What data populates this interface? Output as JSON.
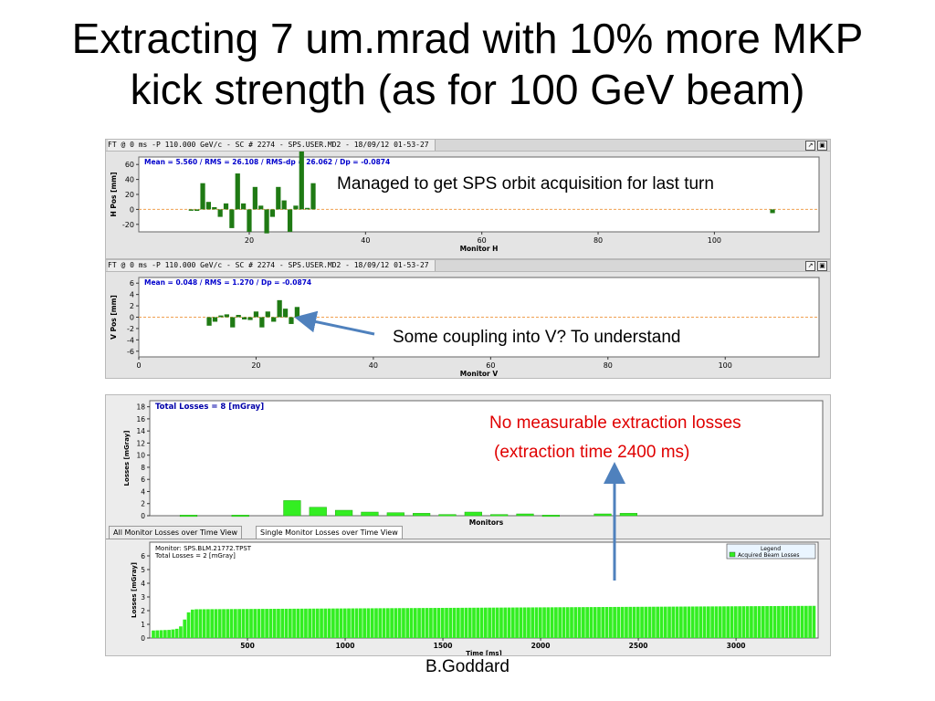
{
  "slide": {
    "title_line1": "Extracting 7 um.mrad with 10% more MKP",
    "title_line2": "kick strength (as for 100 GeV beam)",
    "author": "B.Goddard"
  },
  "annotations": {
    "orbit_note": "Managed to get SPS orbit acquisition for last turn",
    "coupling_note": "Some coupling into V? To understand",
    "losses_note_line1": "No measurable extraction losses",
    "losses_note_line2": "(extraction time 2400 ms)"
  },
  "colors": {
    "bar_dark_green": "#1f7a14",
    "bar_light_green": "#33ee22",
    "reference_line": "#f0a050",
    "arrow_blue": "#4f81bd",
    "loss_text_red": "#e00000",
    "stats_blue": "#0000cc"
  },
  "icons": [
    "maximize-icon",
    "restore-icon"
  ],
  "panels": {
    "h_orbit": {
      "header": "FT @ 0 ms -P  110.000 GeV/c - SC # 2274  - SPS.USER.MD2 - 18/09/12 01-53-27",
      "stats": "Mean =   5.560 / RMS =  26.108 / RMS-dp =  26.062 / Dp = -0.0874"
    },
    "v_orbit": {
      "header": "FT @ 0 ms -P  110.000 GeV/c - SC # 2274  - SPS.USER.MD2 - 18/09/12 01-53-27",
      "stats": "Mean =   0.048 / RMS =   1.270 / Dp = -0.0874"
    },
    "blm": {
      "title": "Total Losses = 8 [mGray]",
      "tabs": [
        "All Monitor Losses over Time View",
        "Single Monitor Losses over Time View"
      ],
      "active_tab": 1,
      "info_line1": "Monitor: SPS.BLM.21772.TPST",
      "info_line2": "Total Losses = 2 [mGray]",
      "legend_title": "Legend",
      "legend_item": "Acquired Beam Losses"
    }
  },
  "chart_data": [
    {
      "type": "bar",
      "xlabel": "Monitor H",
      "ylabel": "H Pos [mm]",
      "xlim": [
        1,
        118
      ],
      "ylim": [
        -30,
        70
      ],
      "xticks": [
        20,
        40,
        60,
        80,
        100
      ],
      "yticks": [
        -20,
        0,
        20,
        40,
        60
      ],
      "reference_line_y": 0,
      "x": [
        10,
        11,
        12,
        13,
        14,
        15,
        16,
        17,
        18,
        19,
        20,
        21,
        22,
        23,
        24,
        25,
        26,
        27,
        28,
        29,
        30,
        31,
        110
      ],
      "values": [
        0,
        -2,
        35,
        10,
        3,
        -10,
        8,
        -25,
        48,
        8,
        -30,
        30,
        5,
        -32,
        -10,
        30,
        12,
        -30,
        5,
        80,
        2,
        35,
        -5
      ]
    },
    {
      "type": "bar",
      "xlabel": "Monitor V",
      "ylabel": "V Pos [mm]",
      "xlim": [
        0,
        116
      ],
      "ylim": [
        -7,
        7
      ],
      "xticks": [
        0,
        20,
        40,
        60,
        80,
        100
      ],
      "yticks": [
        -6,
        -4,
        -2,
        0,
        2,
        4,
        6
      ],
      "reference_line_y": 0,
      "x": [
        12,
        13,
        14,
        15,
        16,
        17,
        18,
        19,
        20,
        21,
        22,
        23,
        24,
        25,
        26,
        27
      ],
      "values": [
        -1.5,
        -0.8,
        0.3,
        0.5,
        -1.8,
        0.4,
        -0.4,
        -0.5,
        1.0,
        -1.8,
        1.0,
        -0.8,
        3.0,
        1.5,
        -1.2,
        1.8
      ]
    },
    {
      "type": "bar",
      "title": "Total Losses = 8 [mGray]",
      "xlabel": "Monitors",
      "ylabel": "Losses [mGray]",
      "ylim": [
        0,
        19
      ],
      "yticks": [
        0,
        2,
        4,
        6,
        8,
        10,
        12,
        14,
        16,
        18
      ],
      "slots": 26,
      "x": [
        1,
        3,
        5,
        6,
        7,
        8,
        9,
        10,
        11,
        12,
        13,
        14,
        15,
        17,
        18
      ],
      "values": [
        0.1,
        0.1,
        2.5,
        1.4,
        0.9,
        0.6,
        0.5,
        0.4,
        0.2,
        0.6,
        0.2,
        0.3,
        0.1,
        0.3,
        0.4
      ]
    },
    {
      "type": "bar",
      "xlabel": "Time [ms]",
      "ylabel": "Losses [mGray]",
      "xlim": [
        0,
        3420
      ],
      "ylim": [
        0,
        7
      ],
      "xticks": [
        500,
        1000,
        1500,
        2000,
        2500,
        3000
      ],
      "yticks": [
        0,
        1,
        2,
        3,
        4,
        5,
        6
      ],
      "bar_width_ms": 20,
      "profile": [
        {
          "t": 20,
          "v": 0.55
        },
        {
          "t": 110,
          "v": 0.6
        },
        {
          "t": 150,
          "v": 0.7
        },
        {
          "t": 170,
          "v": 1.0
        },
        {
          "t": 190,
          "v": 1.7
        },
        {
          "t": 210,
          "v": 2.05
        },
        {
          "t": 230,
          "v": 2.1
        },
        {
          "t": 3400,
          "v": 2.35
        }
      ]
    }
  ]
}
